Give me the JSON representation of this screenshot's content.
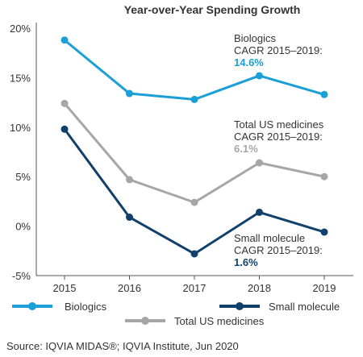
{
  "chart_data": {
    "type": "line",
    "title": "Year-over-Year Spending Growth",
    "xlabel": "",
    "ylabel": "",
    "categories": [
      "2015",
      "2016",
      "2017",
      "2018",
      "2019"
    ],
    "ylim": [
      -5,
      20
    ],
    "yticks": [
      "20%",
      "15%",
      "10%",
      "5%",
      "0%",
      "-5%"
    ],
    "ytick_values": [
      20,
      15,
      10,
      5,
      0,
      -5
    ],
    "grid": false,
    "legend_position": "bottom",
    "series": [
      {
        "name": "Biologics",
        "color": "#1a9fd6",
        "values": [
          18.8,
          13.4,
          12.8,
          15.2,
          13.3
        ]
      },
      {
        "name": "Total US medicines",
        "color": "#a6a6a6",
        "values": [
          12.4,
          4.7,
          2.4,
          6.4,
          5.0
        ]
      },
      {
        "name": "Small molecule",
        "color": "#12406c",
        "values": [
          9.8,
          0.9,
          -2.8,
          1.4,
          -0.6
        ]
      }
    ],
    "annotations": [
      {
        "line1": "Biologics",
        "line2": "CAGR 2015–2019:",
        "value": "14.6%",
        "color": "#1a9fd6"
      },
      {
        "line1": "Total US medicines",
        "line2": "CAGR 2015–2019:",
        "value": "6.1%",
        "color": "#a6a6a6"
      },
      {
        "line1": "Small molecule",
        "line2": "CAGR 2015–2019:",
        "value": "1.6%",
        "color": "#12406c"
      }
    ]
  },
  "legend": {
    "biologics": "Biologics",
    "small_molecule": "Small molecule",
    "total": "Total US medicines"
  },
  "source": "Source: IQVIA MIDAS®; IQVIA Institute, Jun 2020"
}
